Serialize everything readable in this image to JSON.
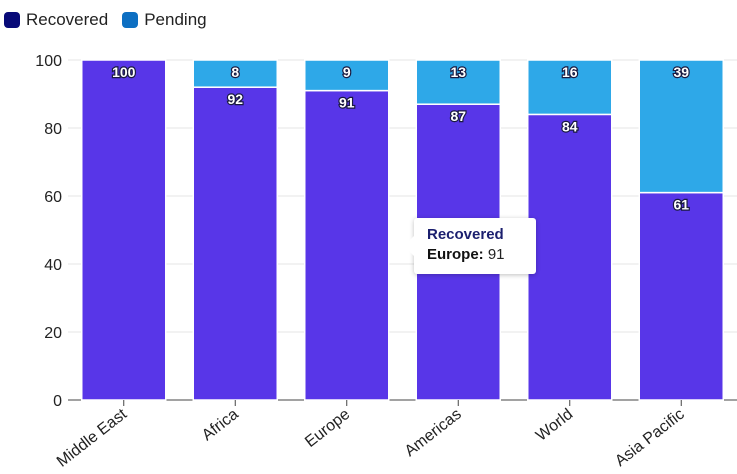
{
  "legend": {
    "items": [
      {
        "label": "Recovered",
        "color": "#080a78"
      },
      {
        "label": "Pending",
        "color": "#0d6fc2"
      }
    ]
  },
  "tooltip": {
    "series": "Recovered",
    "category": "Europe:",
    "value": "91"
  },
  "chart_data": {
    "type": "bar",
    "stacked": true,
    "categories": [
      "Middle East",
      "Africa",
      "Europe",
      "Americas",
      "World",
      "Asia Pacific"
    ],
    "series": [
      {
        "name": "Recovered",
        "color": "#5836e8",
        "values": [
          100,
          92,
          91,
          87,
          84,
          61
        ]
      },
      {
        "name": "Pending",
        "color": "#2ea8e8",
        "values": [
          0,
          8,
          9,
          13,
          16,
          39
        ]
      }
    ],
    "ylim": [
      0,
      100
    ],
    "yticks": [
      0,
      20,
      40,
      60,
      80,
      100
    ],
    "grid": true,
    "legend": "top-left"
  }
}
